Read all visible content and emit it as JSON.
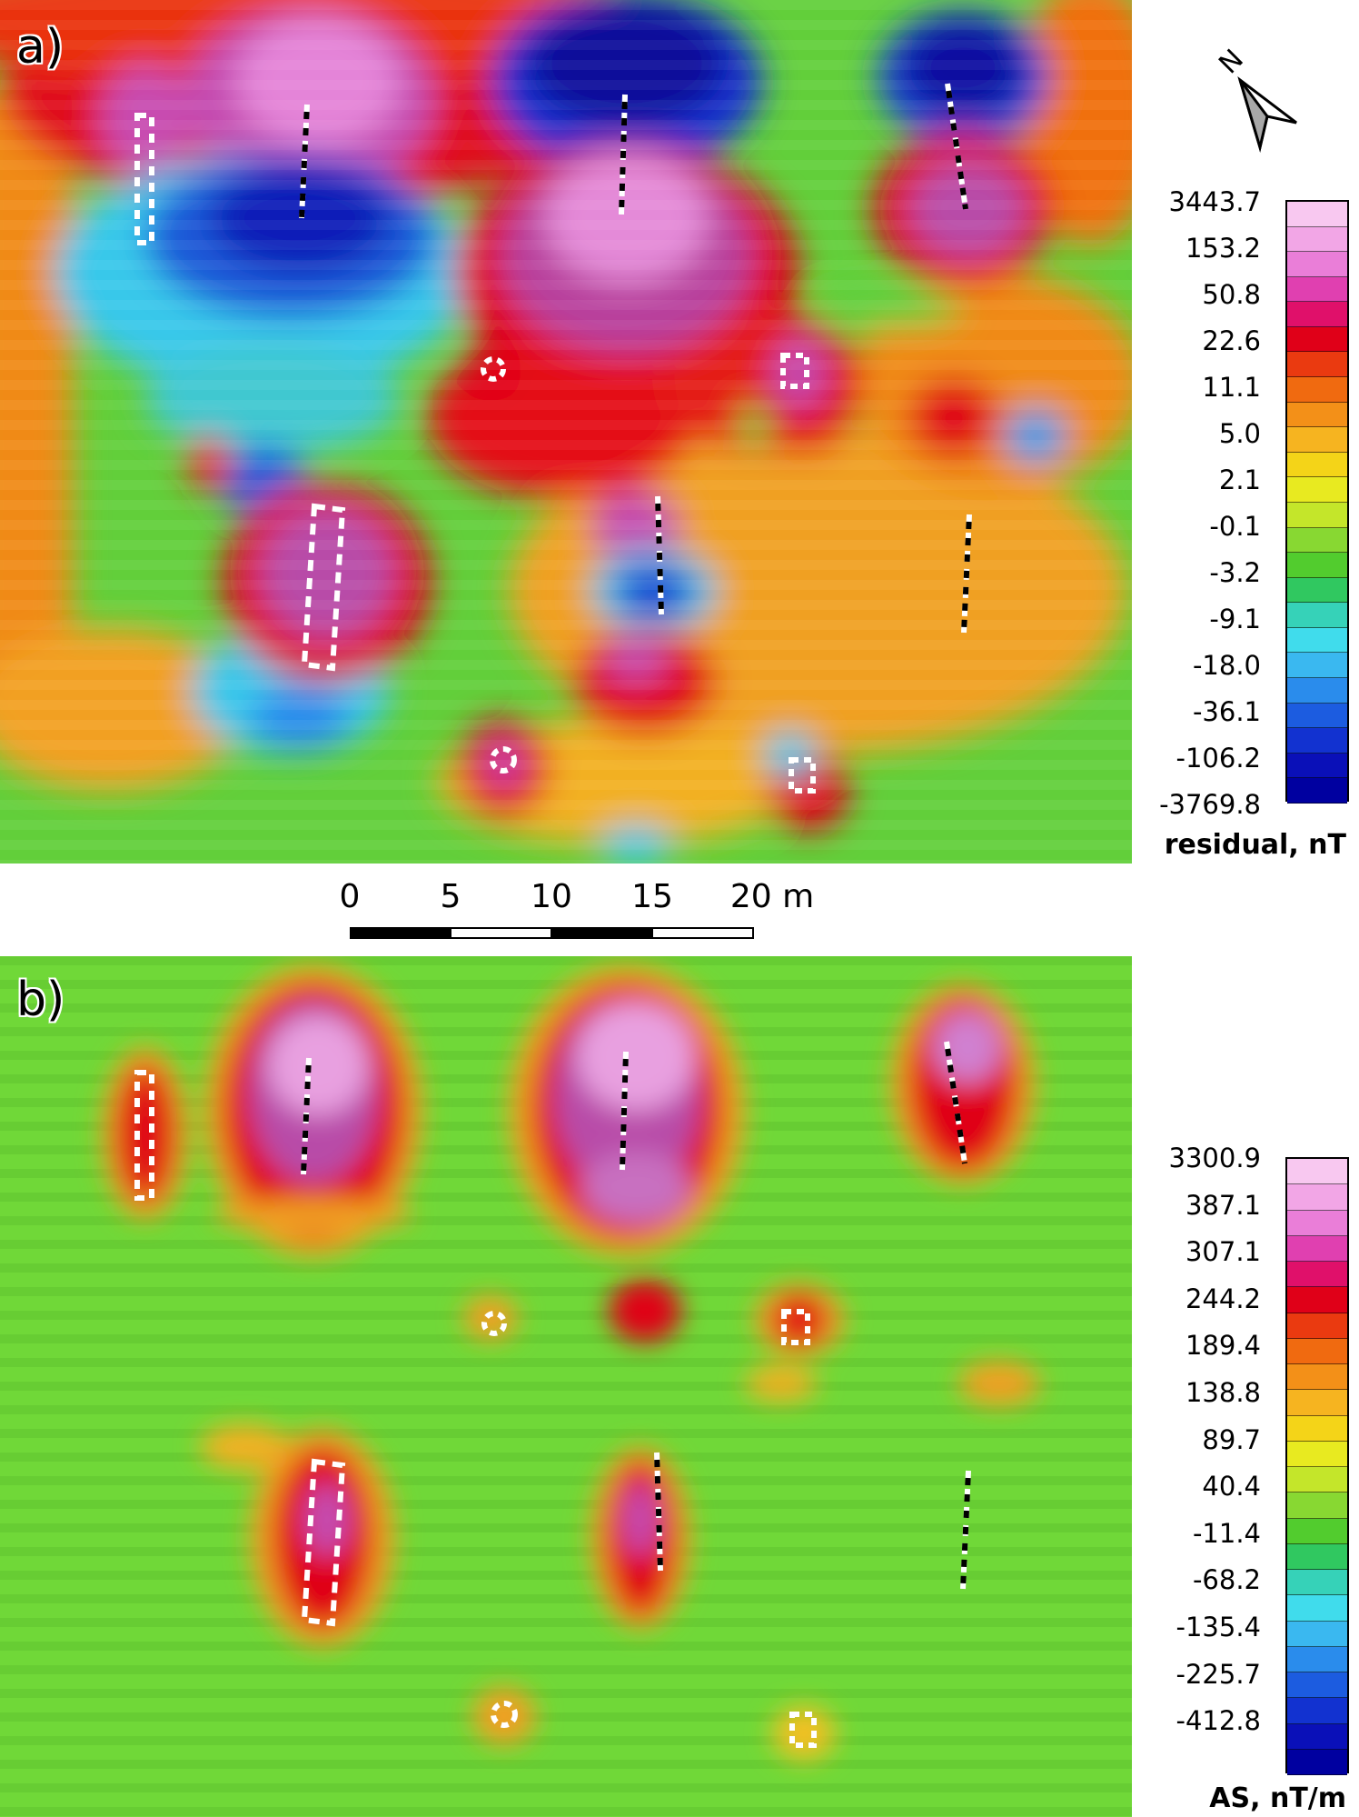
{
  "panels": [
    {
      "label": "a)",
      "legend_title": "residual, nT",
      "legend_ticks": [
        "3443.7",
        "153.2",
        "50.8",
        "22.6",
        "11.1",
        "5.0",
        "2.1",
        "-0.1",
        "-3.2",
        "-9.1",
        "-18.0",
        "-36.1",
        "-106.2",
        "-3769.8"
      ]
    },
    {
      "label": "b)",
      "legend_title": "AS, nT/m",
      "legend_ticks": [
        "3300.9",
        "387.1",
        "307.1",
        "244.2",
        "189.4",
        "138.8",
        "89.7",
        "40.4",
        "-11.4",
        "-68.2",
        "-135.4",
        "-225.7",
        "-412.8"
      ]
    }
  ],
  "scale_bar": {
    "labels": [
      "0",
      "5",
      "10",
      "15",
      "20 m"
    ],
    "segments": 4
  },
  "north_label": "N",
  "colors": {
    "magenta_high": "#e36ad0",
    "red": "#e00018",
    "orange": "#f07a10",
    "yellow": "#e8dc18",
    "green": "#5fd23a",
    "cyan": "#38d0e8",
    "blue": "#1040e0",
    "navy": "#0a0aa8"
  },
  "legend_colors_a": [
    "#f8c8f0",
    "#f2a6e6",
    "#ea7ed8",
    "#e040b0",
    "#e0106a",
    "#e00018",
    "#ea3a10",
    "#f06a10",
    "#f39018",
    "#f6b420",
    "#f4d418",
    "#e8ea20",
    "#c4e62a",
    "#88d832",
    "#52cc2e",
    "#30c860",
    "#36d2b8",
    "#40dcec",
    "#3ab8f0",
    "#2a8cec",
    "#1c5ce0",
    "#1232d0",
    "#0a10b8",
    "#0000a0"
  ],
  "legend_colors_b": [
    "#f8c8f0",
    "#f2a6e6",
    "#ea7ed8",
    "#e040b0",
    "#e0106a",
    "#e00018",
    "#ea3a10",
    "#f06a10",
    "#f39018",
    "#f6b420",
    "#f4d418",
    "#e8ea20",
    "#c4e62a",
    "#88d832",
    "#52cc2e",
    "#30c860",
    "#36d2b8",
    "#40dcec",
    "#3ab8f0",
    "#2a8cec",
    "#1c5ce0",
    "#1232d0",
    "#0a10b8",
    "#0000a0"
  ]
}
